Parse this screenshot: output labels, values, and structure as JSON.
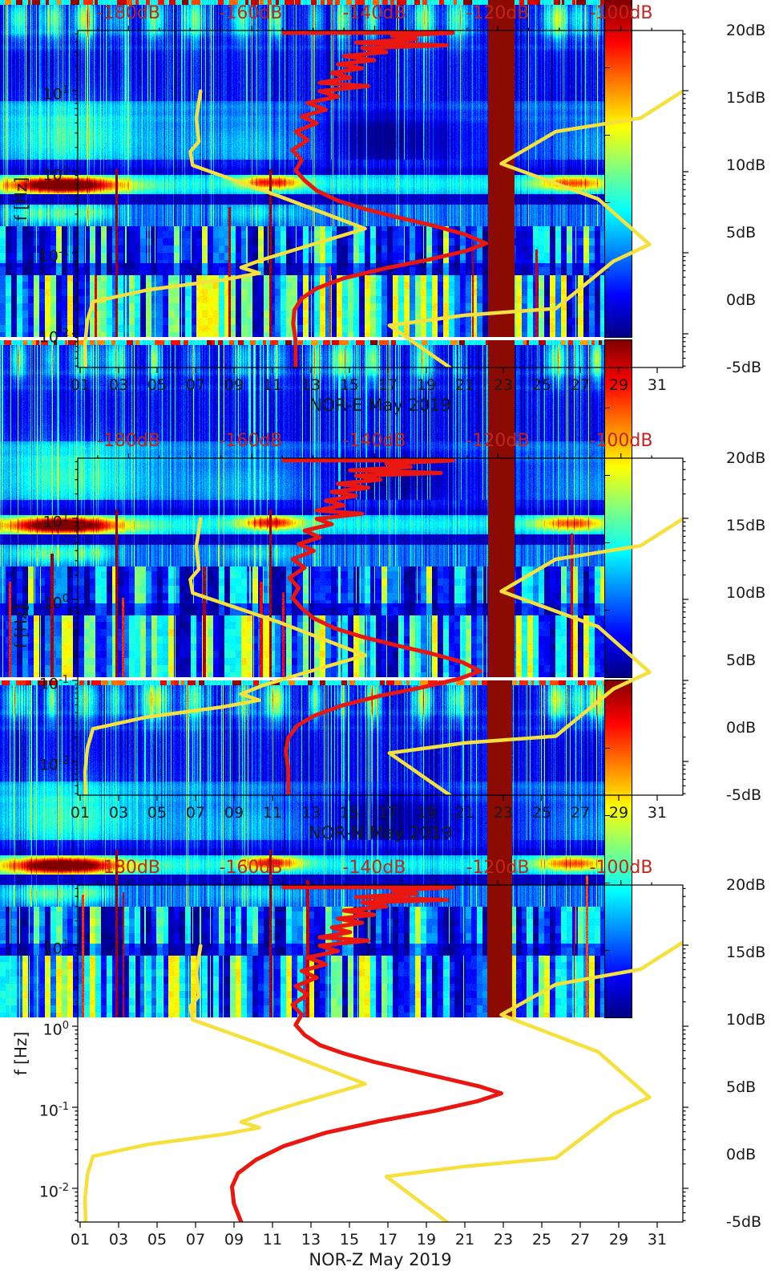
{
  "figure": {
    "background": "#ffffff"
  },
  "colors": {
    "axis_text": "#1a1a1a",
    "top_axis_text": "#c2251f",
    "red_curve": "#ea1610",
    "yellow_curve": "#f6e03c",
    "data_gap_band": "#8b0a02",
    "frame": "#000000"
  },
  "chart_data": [
    {
      "type": "heatmap",
      "title": "NOR-E May 2019",
      "ylabel": "f [Hz]",
      "y_scale": "log",
      "y_range_hz": [
        0.004,
        55
      ],
      "x_range_days": [
        1,
        32
      ],
      "x_tick_labels": [
        "01",
        "03",
        "05",
        "07",
        "09",
        "11",
        "13",
        "15",
        "17",
        "19",
        "21",
        "23",
        "25",
        "27",
        "29",
        "31"
      ],
      "y_ticks": {
        "base": "10",
        "exponents": [
          "1",
          "0",
          "-1",
          "-2"
        ]
      },
      "top_axis_labels": [
        "-180dB",
        "-160dB",
        "-140dB",
        "-120dB",
        "-100dB"
      ],
      "colorbar": {
        "labels": [
          "20dB",
          "15dB",
          "10dB",
          "5dB",
          "0dB",
          "-5dB"
        ],
        "range_db": [
          -5,
          20
        ],
        "colormap": "jet"
      },
      "features": {
        "microseism_hotspot_day_ranges": [
          [
            2,
            6.5
          ],
          [
            13,
            15.5
          ],
          [
            28,
            30.5
          ]
        ],
        "hotspot_freq_hz": 0.2,
        "data_gap_day_range": [
          26.2,
          27.5
        ],
        "data_gap_x_pct": [
          80.6,
          85.0
        ]
      },
      "overlays": {
        "red_curve_pct": [
          [
            34,
            0.7
          ],
          [
            62,
            0.7
          ],
          [
            52,
            1.6
          ],
          [
            56,
            2.6
          ],
          [
            46,
            3.6
          ],
          [
            61,
            4.4
          ],
          [
            47,
            5.2
          ],
          [
            51,
            6.4
          ],
          [
            44,
            7.6
          ],
          [
            49,
            8.8
          ],
          [
            43,
            10
          ],
          [
            47,
            11.2
          ],
          [
            42,
            12.6
          ],
          [
            45,
            14
          ],
          [
            40,
            15.5
          ],
          [
            48,
            16.5
          ],
          [
            40,
            18
          ],
          [
            43,
            19.6
          ],
          [
            38,
            21.5
          ],
          [
            41,
            23.5
          ],
          [
            37,
            25.5
          ],
          [
            39.5,
            27.5
          ],
          [
            36,
            30
          ],
          [
            38,
            32.5
          ],
          [
            35.5,
            35.5
          ],
          [
            37,
            38.5
          ],
          [
            36,
            41.5
          ],
          [
            37.5,
            44.5
          ],
          [
            39.5,
            47.5
          ],
          [
            43,
            50.5
          ],
          [
            47.5,
            53
          ],
          [
            53,
            55.5
          ],
          [
            59,
            58
          ],
          [
            64,
            60.5
          ],
          [
            67.5,
            63.2
          ],
          [
            64,
            65.5
          ],
          [
            58,
            68
          ],
          [
            51,
            70.5
          ],
          [
            44,
            73.5
          ],
          [
            39.5,
            76.5
          ],
          [
            37,
            79.5
          ],
          [
            35.8,
            83
          ],
          [
            35.6,
            87
          ],
          [
            36,
            92
          ],
          [
            36,
            100
          ]
        ],
        "yellow_curve_left_pct": [
          [
            20.3,
            18
          ],
          [
            19.6,
            26
          ],
          [
            20,
            33
          ],
          [
            18.6,
            36
          ],
          [
            19,
            40
          ],
          [
            33,
            49
          ],
          [
            47.5,
            58.8
          ],
          [
            36,
            65
          ],
          [
            30.5,
            68
          ],
          [
            27,
            70.3
          ],
          [
            30,
            72
          ],
          [
            24,
            74
          ],
          [
            11.5,
            77
          ],
          [
            2.5,
            80.5
          ],
          [
            1.6,
            86
          ],
          [
            1.2,
            93
          ],
          [
            1.3,
            100
          ]
        ],
        "yellow_curve_right_pct": [
          [
            100,
            18
          ],
          [
            93,
            26
          ],
          [
            79,
            30
          ],
          [
            70,
            39.5
          ],
          [
            86,
            50
          ],
          [
            94.5,
            63.5
          ],
          [
            88.5,
            68.5
          ],
          [
            79,
            82.5
          ],
          [
            64,
            84.5
          ],
          [
            51.5,
            87.5
          ],
          [
            61.5,
            100
          ]
        ]
      },
      "texture_seed": 11
    },
    {
      "type": "heatmap",
      "title": "NOR-N May 2019",
      "ylabel": "f [Hz]",
      "y_scale": "log",
      "y_range_hz": [
        0.004,
        55
      ],
      "x_range_days": [
        1,
        32
      ],
      "x_tick_labels": [
        "01",
        "03",
        "05",
        "07",
        "09",
        "11",
        "13",
        "15",
        "17",
        "19",
        "21",
        "23",
        "25",
        "27",
        "29",
        "31"
      ],
      "y_ticks": {
        "base": "10",
        "exponents": [
          "1",
          "0",
          "-1",
          "-2"
        ]
      },
      "top_axis_labels": [
        "-180dB",
        "-160dB",
        "-140dB",
        "-120dB",
        "-100dB"
      ],
      "colorbar": {
        "labels": [
          "20dB",
          "15dB",
          "10dB",
          "5dB",
          "0dB",
          "-5dB"
        ],
        "range_db": [
          -5,
          20
        ],
        "colormap": "jet"
      },
      "features": {
        "microseism_hotspot_day_ranges": [
          [
            2,
            6.5
          ],
          [
            13,
            15.5
          ],
          [
            28,
            30.5
          ]
        ],
        "hotspot_freq_hz": 0.2,
        "data_gap_day_range": [
          26.2,
          27.5
        ],
        "data_gap_x_pct": [
          80.6,
          85.0
        ]
      },
      "overlays": {
        "red_curve_pct": [
          [
            34,
            0.7
          ],
          [
            62,
            0.7
          ],
          [
            51,
            1.6
          ],
          [
            55,
            2.6
          ],
          [
            45,
            3.6
          ],
          [
            60,
            4.4
          ],
          [
            46,
            5.2
          ],
          [
            50,
            6.4
          ],
          [
            43,
            7.6
          ],
          [
            48,
            8.8
          ],
          [
            42,
            10
          ],
          [
            46,
            11.2
          ],
          [
            41,
            12.6
          ],
          [
            44,
            14
          ],
          [
            39.5,
            15.5
          ],
          [
            47,
            16.5
          ],
          [
            39.5,
            18
          ],
          [
            42,
            19.6
          ],
          [
            37.5,
            21.5
          ],
          [
            40,
            23.5
          ],
          [
            36.5,
            25.5
          ],
          [
            39,
            27.5
          ],
          [
            35.5,
            30
          ],
          [
            37.5,
            32.5
          ],
          [
            35,
            35.5
          ],
          [
            36.5,
            38.5
          ],
          [
            35.5,
            41.5
          ],
          [
            37,
            44.5
          ],
          [
            39,
            47.5
          ],
          [
            42.5,
            50.5
          ],
          [
            47,
            53
          ],
          [
            52.5,
            55.5
          ],
          [
            58.5,
            58
          ],
          [
            63.5,
            60.5
          ],
          [
            66.5,
            63.2
          ],
          [
            63,
            65.5
          ],
          [
            57,
            68
          ],
          [
            50,
            70.5
          ],
          [
            43.5,
            73.5
          ],
          [
            39,
            76.5
          ],
          [
            36.2,
            79.5
          ],
          [
            34.8,
            83
          ],
          [
            34.4,
            87
          ],
          [
            34.8,
            92
          ],
          [
            34.8,
            100
          ]
        ],
        "yellow_curve_left_pct": [
          [
            20.3,
            18
          ],
          [
            19.6,
            26
          ],
          [
            20,
            33
          ],
          [
            18.6,
            36
          ],
          [
            19,
            40
          ],
          [
            33,
            48.5
          ],
          [
            47.5,
            58.5
          ],
          [
            36,
            64.5
          ],
          [
            30.5,
            67.5
          ],
          [
            27,
            70
          ],
          [
            30,
            71.8
          ],
          [
            24,
            73.8
          ],
          [
            11.5,
            76.8
          ],
          [
            2.5,
            80.3
          ],
          [
            1.6,
            86
          ],
          [
            1.2,
            93
          ],
          [
            1.3,
            100
          ]
        ],
        "yellow_curve_right_pct": [
          [
            100,
            18
          ],
          [
            93,
            26
          ],
          [
            79,
            30
          ],
          [
            70,
            39.5
          ],
          [
            86,
            50
          ],
          [
            94.5,
            63.5
          ],
          [
            88.5,
            68.5
          ],
          [
            79,
            82.5
          ],
          [
            64,
            84.5
          ],
          [
            51.5,
            87.5
          ],
          [
            61.5,
            100
          ]
        ]
      },
      "texture_seed": 22
    },
    {
      "type": "heatmap",
      "title": "NOR-Z May 2019",
      "ylabel": "f [Hz]",
      "y_scale": "log",
      "y_range_hz": [
        0.004,
        55
      ],
      "x_range_days": [
        1,
        32
      ],
      "x_tick_labels": [
        "01",
        "03",
        "05",
        "07",
        "09",
        "11",
        "13",
        "15",
        "17",
        "19",
        "21",
        "23",
        "25",
        "27",
        "29",
        "31"
      ],
      "y_ticks": {
        "base": "10",
        "exponents": [
          "1",
          "0",
          "-1",
          "-2"
        ]
      },
      "top_axis_labels": [
        "-180dB",
        "-160dB",
        "-140dB",
        "-120dB",
        "-100dB"
      ],
      "colorbar": {
        "labels": [
          "20dB",
          "15dB",
          "10dB",
          "5dB",
          "0dB",
          "-5dB"
        ],
        "range_db": [
          -5,
          20
        ],
        "colormap": "jet"
      },
      "features": {
        "microseism_hotspot_day_ranges": [
          [
            2,
            6.5
          ],
          [
            13,
            15.5
          ],
          [
            28,
            30.5
          ]
        ],
        "hotspot_freq_hz": 0.2,
        "data_gap_day_range": [
          26.2,
          27.5
        ],
        "data_gap_x_pct": [
          80.5,
          84.6
        ]
      },
      "overlays": {
        "red_curve_pct": [
          [
            34,
            0.7
          ],
          [
            62,
            0.7
          ],
          [
            52,
            1.6
          ],
          [
            56,
            2.6
          ],
          [
            46,
            3.6
          ],
          [
            61,
            4.4
          ],
          [
            47,
            5.2
          ],
          [
            51,
            6.4
          ],
          [
            44,
            7.6
          ],
          [
            49,
            8.8
          ],
          [
            43,
            10
          ],
          [
            47,
            11.2
          ],
          [
            42,
            12.6
          ],
          [
            45,
            14
          ],
          [
            40,
            15.5
          ],
          [
            48,
            16.5
          ],
          [
            40,
            18
          ],
          [
            43,
            19.6
          ],
          [
            38,
            21.5
          ],
          [
            41,
            23.5
          ],
          [
            37,
            25.5
          ],
          [
            39.5,
            27.5
          ],
          [
            36,
            30
          ],
          [
            38,
            32.5
          ],
          [
            35.5,
            35.5
          ],
          [
            37,
            38.5
          ],
          [
            36,
            41.5
          ],
          [
            37.5,
            44.5
          ],
          [
            40,
            47.5
          ],
          [
            44,
            50
          ],
          [
            49,
            52.5
          ],
          [
            55,
            55
          ],
          [
            61,
            57.5
          ],
          [
            66.5,
            59.8
          ],
          [
            70,
            61.8
          ],
          [
            66,
            64.2
          ],
          [
            59,
            67
          ],
          [
            50,
            70
          ],
          [
            41,
            73.5
          ],
          [
            34,
            77.5
          ],
          [
            29.5,
            81.5
          ],
          [
            26.5,
            85.5
          ],
          [
            25.5,
            89.5
          ],
          [
            25.8,
            94.5
          ],
          [
            27,
            100
          ]
        ],
        "yellow_curve_left_pct": [
          [
            20.3,
            18
          ],
          [
            19.6,
            26
          ],
          [
            20,
            33
          ],
          [
            18.6,
            36
          ],
          [
            19,
            40
          ],
          [
            33,
            49
          ],
          [
            47.5,
            59
          ],
          [
            36,
            65
          ],
          [
            30.5,
            68
          ],
          [
            27,
            70.3
          ],
          [
            30,
            72
          ],
          [
            24,
            74
          ],
          [
            11.5,
            77
          ],
          [
            2.5,
            80.5
          ],
          [
            1.6,
            86
          ],
          [
            1.2,
            93
          ],
          [
            1.3,
            100
          ]
        ],
        "yellow_curve_right_pct": [
          [
            100,
            17
          ],
          [
            93,
            25
          ],
          [
            79,
            29.5
          ],
          [
            70,
            38.5
          ],
          [
            86,
            49.5
          ],
          [
            94.5,
            63
          ],
          [
            88.5,
            68
          ],
          [
            79,
            81
          ],
          [
            64,
            83.5
          ],
          [
            51,
            86.5
          ],
          [
            61,
            100
          ]
        ]
      },
      "texture_seed": 33
    }
  ]
}
